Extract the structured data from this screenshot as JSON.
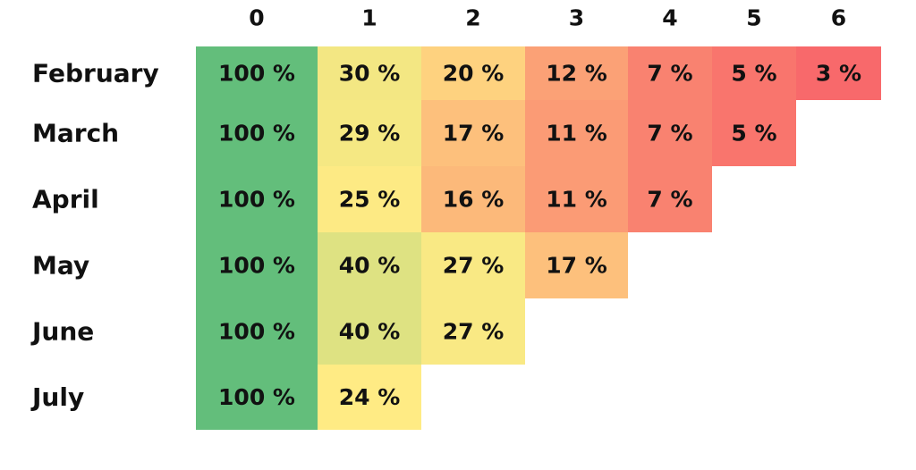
{
  "chart_data": {
    "type": "heatmap",
    "title": "",
    "xlabel": "",
    "ylabel": "",
    "columns": [
      "0",
      "1",
      "2",
      "3",
      "4",
      "5",
      "6"
    ],
    "rows": [
      {
        "label": "February",
        "values": [
          100,
          30,
          20,
          12,
          7,
          5,
          3
        ]
      },
      {
        "label": "March",
        "values": [
          100,
          29,
          17,
          11,
          7,
          5
        ]
      },
      {
        "label": "April",
        "values": [
          100,
          25,
          16,
          11,
          7
        ]
      },
      {
        "label": "May",
        "values": [
          100,
          40,
          27,
          17
        ]
      },
      {
        "label": "June",
        "values": [
          100,
          40,
          27
        ]
      },
      {
        "label": "July",
        "values": [
          100,
          24
        ]
      }
    ],
    "value_suffix": " %",
    "color_scale": {
      "low": "#f8696b",
      "mid": "#ffeb84",
      "high": "#63be7b"
    }
  }
}
